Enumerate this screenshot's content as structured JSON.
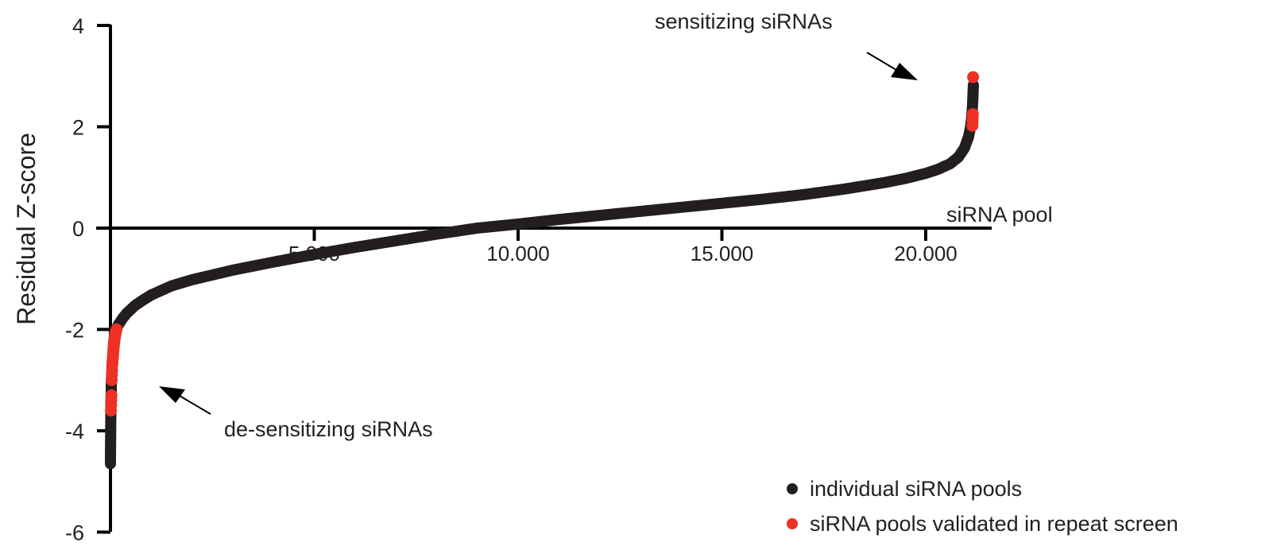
{
  "chart_data": {
    "type": "scatter",
    "title": "",
    "xlabel": "siRNA pool",
    "ylabel": "Residual Z-score",
    "xlim": [
      0,
      21500
    ],
    "ylim": [
      -6,
      4
    ],
    "x_ticks": [
      5000,
      10000,
      15000,
      20000
    ],
    "x_tick_labels": [
      "5.000",
      "10.000",
      "15.000",
      "20.000"
    ],
    "y_ticks": [
      4,
      2,
      0,
      -2,
      -4,
      -6
    ],
    "y_tick_labels": [
      "4",
      "2",
      "0",
      "-2",
      "-4",
      "-6"
    ],
    "grid": false,
    "legend_position": "bottom-right",
    "series": [
      {
        "name": "individual siRNA pools",
        "color": "#231f20",
        "x": [
          0,
          10,
          25,
          50,
          75,
          100,
          150,
          200,
          300,
          400,
          600,
          800,
          1000,
          1500,
          2000,
          3000,
          4000,
          5000,
          6000,
          7000,
          8000,
          9000,
          10000,
          11000,
          12000,
          13000,
          14000,
          15000,
          16000,
          17000,
          18000,
          19000,
          19500,
          20000,
          20300,
          20600,
          20800,
          20950,
          21050,
          21100,
          21130,
          21150,
          21160,
          21170
        ],
        "y": [
          -4.65,
          -3.5,
          -3.0,
          -2.6,
          -2.3,
          -2.1,
          -1.98,
          -1.9,
          -1.78,
          -1.68,
          -1.53,
          -1.42,
          -1.32,
          -1.14,
          -1.02,
          -0.83,
          -0.67,
          -0.52,
          -0.38,
          -0.25,
          -0.12,
          0.0,
          0.08,
          0.17,
          0.25,
          0.33,
          0.41,
          0.49,
          0.57,
          0.66,
          0.77,
          0.9,
          0.98,
          1.08,
          1.16,
          1.27,
          1.4,
          1.58,
          1.8,
          2.0,
          2.2,
          2.45,
          2.65,
          2.85
        ]
      },
      {
        "name": "siRNA pools validated in repeat screen",
        "color": "#ee3124",
        "x": [
          12,
          16,
          20,
          25,
          30,
          35,
          40,
          45,
          50,
          55,
          60,
          65,
          70,
          75,
          80,
          85,
          90,
          95,
          100,
          105,
          110,
          120,
          130,
          140,
          150,
          21145,
          21148,
          21150,
          21152,
          21156,
          21162
        ],
        "y": [
          -3.6,
          -3.5,
          -3.4,
          -3.3,
          -3.0,
          -2.9,
          -2.8,
          -2.7,
          -2.65,
          -2.6,
          -2.55,
          -2.5,
          -2.45,
          -2.4,
          -2.35,
          -2.3,
          -2.27,
          -2.24,
          -2.2,
          -2.17,
          -2.14,
          -2.1,
          -2.06,
          -2.03,
          -2.0,
          2.02,
          2.1,
          2.15,
          2.2,
          2.25,
          2.98
        ]
      }
    ],
    "annotations": [
      {
        "text": "sensitizing siRNAs",
        "arrow_to": "top-right data tail"
      },
      {
        "text": "de-sensitizing siRNAs",
        "arrow_to": "bottom-left data tail"
      }
    ]
  }
}
